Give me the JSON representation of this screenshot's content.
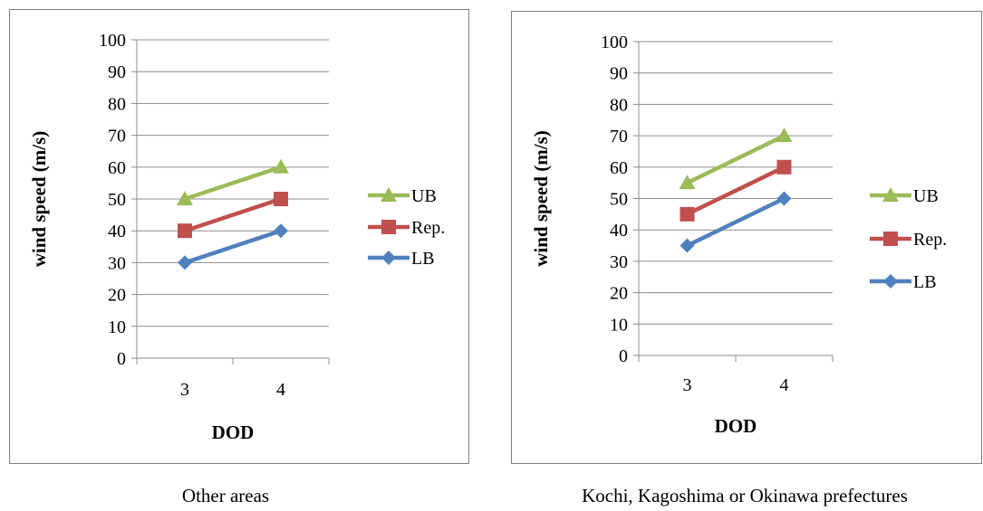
{
  "chart_data": [
    {
      "type": "line",
      "xlabel": "DOD",
      "ylabel": "wind speed (m/s)",
      "categories": [
        "3",
        "4"
      ],
      "ylim": [
        0,
        100
      ],
      "yticks": [
        0,
        10,
        20,
        30,
        40,
        50,
        60,
        70,
        80,
        90,
        100
      ],
      "grid": true,
      "legend": "right",
      "caption": "Other areas",
      "series": [
        {
          "name": "UB",
          "values": [
            50,
            60
          ],
          "color": "#9bbb59",
          "marker": "triangle"
        },
        {
          "name": "Rep.",
          "values": [
            40,
            50
          ],
          "color": "#c0504d",
          "marker": "square"
        },
        {
          "name": "LB",
          "values": [
            30,
            40
          ],
          "color": "#4f81bd",
          "marker": "diamond"
        }
      ]
    },
    {
      "type": "line",
      "xlabel": "DOD",
      "ylabel": "wind speed (m/s)",
      "categories": [
        "3",
        "4"
      ],
      "ylim": [
        0,
        100
      ],
      "yticks": [
        0,
        10,
        20,
        30,
        40,
        50,
        60,
        70,
        80,
        90,
        100
      ],
      "grid": true,
      "legend": "right",
      "caption": "Kochi, Kagoshima or Okinawa prefectures",
      "series": [
        {
          "name": "UB",
          "values": [
            55,
            70
          ],
          "color": "#9bbb59",
          "marker": "triangle"
        },
        {
          "name": "Rep.",
          "values": [
            45,
            60
          ],
          "color": "#c0504d",
          "marker": "square"
        },
        {
          "name": "LB",
          "values": [
            35,
            50
          ],
          "color": "#4f81bd",
          "marker": "diamond"
        }
      ]
    }
  ]
}
